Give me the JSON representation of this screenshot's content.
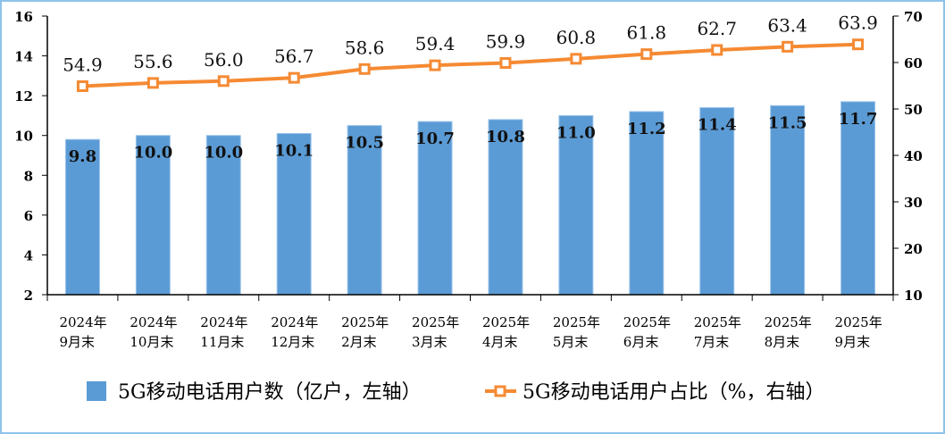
{
  "chart_data": {
    "type": "bar+line",
    "categories": [
      "2024年\n9月末",
      "2024年\n10月末",
      "2024年\n11月末",
      "2024年\n12月末",
      "2025年\n2月末",
      "2025年\n3月末",
      "2025年\n4月末",
      "2025年\n5月末",
      "2025年\n6月末",
      "2025年\n7月末",
      "2025年\n8月末",
      "2025年\n9月末"
    ],
    "series": [
      {
        "name": "5G移动电话用户数（亿户，左轴）",
        "type": "bar",
        "axis": "left",
        "color": "#5b9bd5",
        "values": [
          9.8,
          10.0,
          10.0,
          10.1,
          10.5,
          10.7,
          10.8,
          11.0,
          11.2,
          11.4,
          11.5,
          11.7
        ],
        "labels": [
          "9.8",
          "10.0",
          "10.0",
          "10.1",
          "10.5",
          "10.7",
          "10.8",
          "11.0",
          "11.2",
          "11.4",
          "11.5",
          "11.7"
        ]
      },
      {
        "name": "5G移动电话用户占比（%，右轴）",
        "type": "line",
        "axis": "right",
        "color": "#f58a33",
        "values": [
          54.9,
          55.6,
          56.0,
          56.7,
          58.6,
          59.4,
          59.9,
          60.8,
          61.8,
          62.7,
          63.4,
          63.9
        ],
        "labels": [
          "54.9",
          "55.6",
          "56.0",
          "56.7",
          "58.6",
          "59.4",
          "59.9",
          "60.8",
          "61.8",
          "62.7",
          "63.4",
          "63.9"
        ]
      }
    ],
    "y_left": {
      "range": [
        2,
        16
      ],
      "ticks": [
        "2",
        "4",
        "6",
        "8",
        "10",
        "12",
        "14",
        "16"
      ]
    },
    "y_right": {
      "range": [
        10,
        70
      ],
      "ticks": [
        "10",
        "20",
        "30",
        "40",
        "50",
        "60",
        "70"
      ]
    },
    "grid": false,
    "legend": "bottom"
  }
}
